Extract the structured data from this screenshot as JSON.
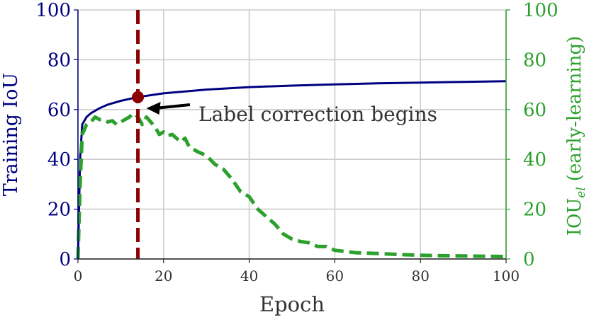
{
  "chart_data": {
    "type": "line",
    "xlabel": "Epoch",
    "ylabel_left": "Training IoU",
    "ylabel_right_main": "IOU",
    "ylabel_right_sub": "el",
    "ylabel_right_suffix": "(early-learning)",
    "xlim": [
      0,
      100
    ],
    "ylim_left": [
      0,
      100
    ],
    "ylim_right": [
      0,
      100
    ],
    "grid": true,
    "x_ticks": [
      "0",
      "20",
      "40",
      "60",
      "80",
      "100"
    ],
    "y_ticks_left": [
      "0",
      "20",
      "40",
      "60",
      "80",
      "100"
    ],
    "y_ticks_right": [
      "0",
      "20",
      "40",
      "60",
      "80",
      "100"
    ],
    "annotation": {
      "text": "Label correction begins",
      "x": 14,
      "y": 65
    },
    "vline_x": 14,
    "series": [
      {
        "axis": "left",
        "style": "solid",
        "color": "#000080",
        "x": [
          0,
          0.5,
          1,
          2,
          3,
          4,
          5,
          7,
          10,
          14,
          20,
          30,
          40,
          50,
          60,
          70,
          80,
          90,
          100
        ],
        "y": [
          0,
          40,
          54,
          57,
          58.5,
          59.5,
          60.5,
          62,
          63.5,
          65,
          66.5,
          68,
          69,
          69.6,
          70.1,
          70.5,
          70.8,
          71.1,
          71.4
        ]
      },
      {
        "axis": "right",
        "style": "dashed",
        "color": "#2ca02c",
        "x": [
          0,
          0.5,
          1,
          2,
          3,
          4,
          5,
          6,
          7,
          8,
          9,
          10,
          11,
          12,
          13,
          14,
          15,
          16,
          17,
          18,
          19,
          20,
          21,
          22,
          23,
          24,
          25,
          26,
          28,
          30,
          32,
          34,
          36,
          38,
          40,
          42,
          44,
          46,
          48,
          50,
          52,
          54,
          56,
          58,
          60,
          65,
          70,
          75,
          80,
          85,
          90,
          95,
          100
        ],
        "y": [
          0,
          30,
          50,
          54,
          55,
          57,
          56,
          56,
          55,
          55.5,
          54,
          55,
          56,
          57,
          58.5,
          57,
          54,
          57,
          55,
          53,
          50,
          51,
          49.5,
          50,
          48.5,
          47,
          48.5,
          45,
          43,
          41.5,
          38,
          36,
          32,
          27,
          25,
          20,
          17,
          14,
          10,
          8,
          7,
          6.5,
          5,
          5,
          3.5,
          2.5,
          2.2,
          1.8,
          1.5,
          1.3,
          1.2,
          1.1,
          1.0
        ]
      }
    ]
  }
}
